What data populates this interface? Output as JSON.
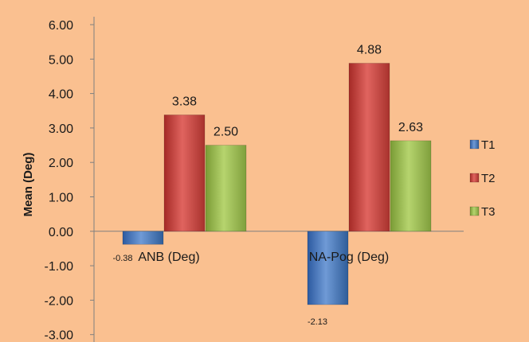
{
  "chart_data": {
    "type": "bar",
    "ylabel": "Mean (Deg)",
    "ylim": [
      -3,
      6
    ],
    "y_tick_step": 1,
    "y_tick_decimals": 2,
    "categories": [
      "ANB (Deg)",
      "NA-Pog (Deg)"
    ],
    "series": [
      {
        "name": "T1",
        "values": [
          -0.38,
          -2.13
        ],
        "color": "#4f81bd"
      },
      {
        "name": "T2",
        "values": [
          3.38,
          4.88
        ],
        "color": "#c0504d"
      },
      {
        "name": "T3",
        "values": [
          2.5,
          2.63
        ],
        "color": "#9bbb59"
      }
    ],
    "data_labels": [
      [
        "-0.38",
        "-2.13"
      ],
      [
        "3.38",
        "4.88"
      ],
      [
        "2.50",
        "2.63"
      ]
    ],
    "legend_position": "right",
    "background": "#fac090"
  }
}
